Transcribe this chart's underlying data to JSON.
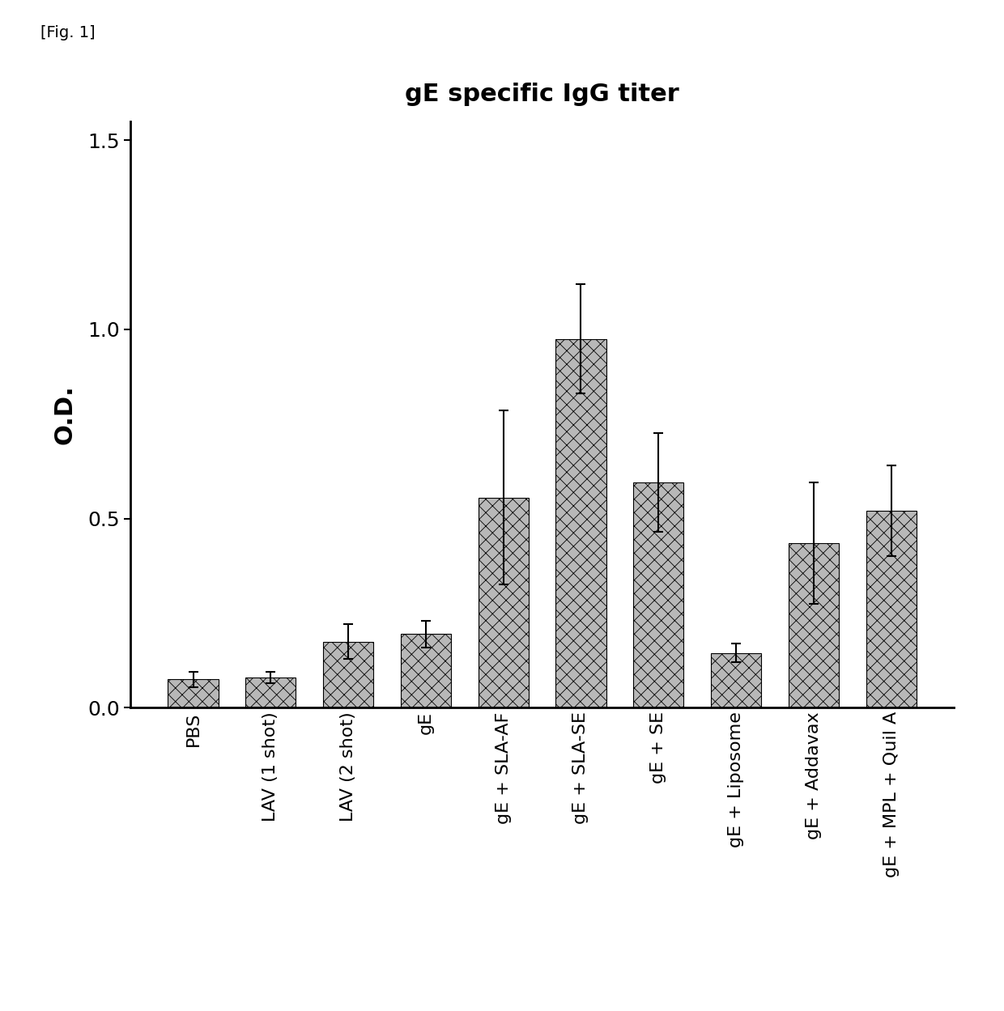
{
  "title": "gE specific IgG titer",
  "fig_label": "[Fig. 1]",
  "ylabel": "O.D.",
  "categories": [
    "PBS",
    "LAV (1 shot)",
    "LAV (2 shot)",
    "gE",
    "gE + SLA-AF",
    "gE + SLA-SE",
    "gE + SE",
    "gE + Liposome",
    "gE + Addavax",
    "gE + MPL + Quil A"
  ],
  "values": [
    0.075,
    0.08,
    0.175,
    0.195,
    0.555,
    0.975,
    0.595,
    0.145,
    0.435,
    0.52
  ],
  "errors": [
    0.02,
    0.015,
    0.045,
    0.035,
    0.23,
    0.145,
    0.13,
    0.025,
    0.16,
    0.12
  ],
  "ylim": [
    0.0,
    1.55
  ],
  "yticks": [
    0.0,
    0.5,
    1.0,
    1.5
  ],
  "bar_color": "#b8b8b8",
  "bar_hatch": "xx",
  "background_color": "#ffffff",
  "title_fontsize": 22,
  "label_fontsize": 18,
  "tick_fontsize": 16,
  "bar_width": 0.65
}
